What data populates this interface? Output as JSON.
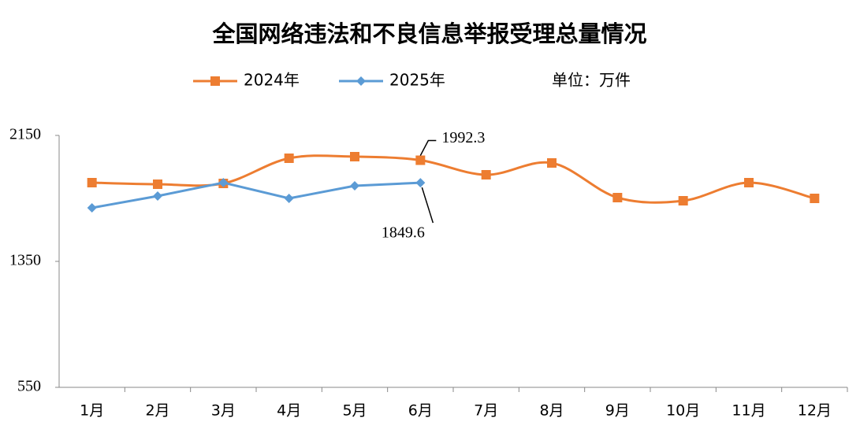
{
  "chart_data": {
    "type": "line",
    "title": "全国网络违法和不良信息举报受理总量情况",
    "unit": "单位：万件",
    "categories": [
      "1月",
      "2月",
      "3月",
      "4月",
      "5月",
      "6月",
      "7月",
      "8月",
      "9月",
      "10月",
      "11月",
      "12月"
    ],
    "series": [
      {
        "name": "2024年",
        "color": "#ED7D31",
        "marker": "square",
        "smooth": true,
        "values": [
          1850,
          1840,
          1845,
          2005,
          2015,
          1992.3,
          1900,
          1975,
          1755,
          1735,
          1850,
          1750
        ],
        "value_labels": [
          null,
          null,
          null,
          null,
          null,
          "1992.3",
          null,
          null,
          null,
          null,
          null,
          null
        ]
      },
      {
        "name": "2025年",
        "color": "#5B9BD5",
        "marker": "diamond",
        "smooth": false,
        "values": [
          1690,
          1765,
          1850,
          1750,
          1830,
          1849.6,
          null,
          null,
          null,
          null,
          null,
          null
        ],
        "value_labels": [
          null,
          null,
          null,
          null,
          null,
          "1849.6",
          null,
          null,
          null,
          null,
          null,
          null
        ]
      }
    ],
    "ylim": [
      550,
      2150
    ],
    "yticks": [
      550,
      1350,
      2150
    ],
    "grid": false,
    "legend": "top"
  }
}
